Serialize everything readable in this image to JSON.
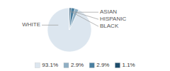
{
  "chart_data": {
    "type": "pie",
    "categories": [
      "WHITE",
      "ASIAN",
      "HISPANIC",
      "BLACK"
    ],
    "values": [
      93.1,
      2.9,
      2.9,
      1.1
    ],
    "value_labels": [
      "93.1%",
      "2.9%",
      "2.9%",
      "1.1%"
    ],
    "colors": [
      "#dce6ef",
      "#8fafc4",
      "#4a7fa0",
      "#1e4d6b"
    ],
    "legend": "bottom"
  }
}
